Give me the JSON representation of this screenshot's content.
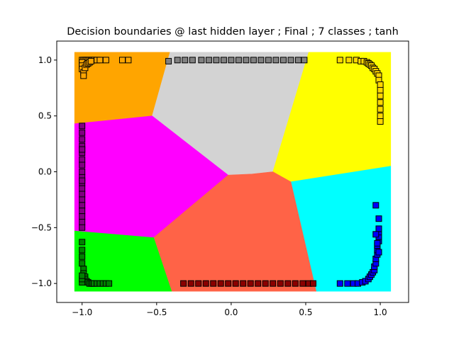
{
  "chart_data": {
    "type": "scatter",
    "title": "Decision boundaries @ last hidden layer ; Final ; 7 classes ; tanh",
    "xlabel": "",
    "ylabel": "",
    "xlim": [
      -1.17,
      1.19
    ],
    "ylim": [
      -1.17,
      1.17
    ],
    "x_ticks": [
      -1.0,
      -0.5,
      0.0,
      0.5,
      1.0
    ],
    "x_tick_labels": [
      "−1.0",
      "−0.5",
      "0.0",
      "0.5",
      "1.0"
    ],
    "y_ticks": [
      1.0,
      0.5,
      0.0,
      -0.5,
      -1.0
    ],
    "y_tick_labels": [
      "1.0",
      "0.5",
      "0.0",
      "−0.5",
      "−1.0"
    ],
    "grid": false,
    "legend": "none",
    "regions": [
      {
        "color": "#ffa500",
        "polygon": [
          [
            -1.05,
            1.07
          ],
          [
            -0.41,
            1.07
          ],
          [
            -0.53,
            0.5
          ],
          [
            -1.05,
            0.43
          ]
        ]
      },
      {
        "color": "#d3d3d3",
        "polygon": [
          [
            -0.41,
            1.07
          ],
          [
            0.52,
            1.07
          ],
          [
            0.28,
            0.0
          ],
          [
            0.14,
            -0.02
          ],
          [
            -0.02,
            -0.03
          ],
          [
            -0.53,
            0.5
          ]
        ]
      },
      {
        "color": "#ffff00",
        "polygon": [
          [
            0.52,
            1.07
          ],
          [
            1.07,
            1.07
          ],
          [
            1.07,
            0.05
          ],
          [
            0.4,
            -0.09
          ],
          [
            0.28,
            0.0
          ]
        ]
      },
      {
        "color": "#ff00ff",
        "polygon": [
          [
            -1.05,
            0.43
          ],
          [
            -0.53,
            0.5
          ],
          [
            -0.02,
            -0.03
          ],
          [
            -0.52,
            -0.59
          ],
          [
            -1.05,
            -0.53
          ]
        ]
      },
      {
        "color": "#00ffff",
        "polygon": [
          [
            0.4,
            -0.09
          ],
          [
            1.07,
            0.05
          ],
          [
            1.07,
            -1.07
          ],
          [
            0.57,
            -1.07
          ]
        ]
      },
      {
        "color": "#ff6347",
        "polygon": [
          [
            -0.02,
            -0.03
          ],
          [
            0.14,
            -0.02
          ],
          [
            0.28,
            0.0
          ],
          [
            0.4,
            -0.09
          ],
          [
            0.57,
            -1.07
          ],
          [
            -0.4,
            -1.07
          ],
          [
            -0.52,
            -0.59
          ]
        ]
      },
      {
        "color": "#00ff00",
        "polygon": [
          [
            -1.05,
            -0.53
          ],
          [
            -0.52,
            -0.59
          ],
          [
            -0.4,
            -1.07
          ],
          [
            -1.05,
            -1.07
          ]
        ]
      }
    ],
    "series": [
      {
        "color": "#ffa500",
        "x": [
          -1.0,
          -0.99,
          -0.98,
          -0.97,
          -0.96,
          -0.95,
          -0.94,
          -0.93,
          -0.92,
          -0.9,
          -0.88,
          -0.84,
          -0.73,
          -0.69,
          -1.0,
          -1.0,
          -1.0,
          -0.99,
          -0.99,
          -0.98,
          -0.97,
          -0.96,
          -0.95,
          -0.94
        ],
        "y": [
          1.0,
          1.0,
          1.0,
          1.0,
          1.0,
          1.0,
          1.0,
          1.0,
          1.0,
          1.0,
          1.0,
          1.0,
          1.0,
          1.0,
          0.98,
          0.95,
          0.92,
          0.89,
          0.86,
          0.93,
          0.96,
          0.97,
          0.98,
          0.99
        ]
      },
      {
        "color": "#808080",
        "x": [
          -0.42,
          -0.36,
          -0.31,
          -0.26,
          -0.2,
          -0.15,
          -0.1,
          -0.05,
          0.0,
          0.05,
          0.1,
          0.15,
          0.2,
          0.25,
          0.3,
          0.35,
          0.4,
          0.45,
          0.49
        ],
        "y": [
          0.99,
          1.0,
          1.0,
          1.0,
          1.0,
          1.0,
          1.0,
          1.0,
          1.0,
          1.0,
          1.0,
          1.0,
          1.0,
          1.0,
          1.0,
          1.0,
          1.0,
          1.0,
          1.0
        ]
      },
      {
        "color": "#ffd700",
        "x": [
          0.73,
          0.79,
          0.84,
          0.87,
          0.89,
          0.91,
          0.92,
          0.93,
          0.94,
          0.95,
          0.96,
          0.97,
          0.98,
          0.99,
          0.99,
          1.0,
          1.0,
          1.0,
          1.0,
          1.0,
          1.0,
          1.0
        ],
        "y": [
          1.0,
          1.0,
          1.0,
          0.99,
          0.99,
          0.98,
          0.97,
          0.96,
          0.95,
          0.93,
          0.92,
          0.9,
          0.88,
          0.86,
          0.82,
          0.78,
          0.73,
          0.68,
          0.62,
          0.56,
          0.5,
          0.45
        ]
      },
      {
        "color": "#800080",
        "x": [
          -1.0,
          -1.0,
          -1.0,
          -1.0,
          -1.0,
          -1.0,
          -1.0,
          -1.0,
          -1.0,
          -1.0,
          -1.0,
          -1.0,
          -1.0,
          -1.0,
          -1.0,
          -1.0,
          -1.0,
          -1.0,
          -1.0,
          -1.0
        ],
        "y": [
          0.41,
          0.35,
          0.29,
          0.23,
          0.17,
          0.11,
          0.06,
          0.0,
          -0.05,
          -0.1,
          -0.15,
          -0.2,
          -0.25,
          -0.3,
          -0.35,
          -0.4,
          -0.45,
          -0.5,
          -0.08,
          0.2
        ]
      },
      {
        "color": "#0000ff",
        "x": [
          0.73,
          0.78,
          0.82,
          0.85,
          0.88,
          0.9,
          0.92,
          0.93,
          0.94,
          0.95,
          0.96,
          0.96,
          0.97,
          0.97,
          0.98,
          0.98,
          0.98,
          0.99,
          0.99,
          0.99,
          0.99,
          0.97,
          0.98,
          0.99,
          0.99,
          0.97
        ],
        "y": [
          -1.0,
          -1.0,
          -1.0,
          -1.0,
          -0.99,
          -0.98,
          -0.96,
          -0.94,
          -0.92,
          -0.9,
          -0.88,
          -0.85,
          -0.82,
          -0.78,
          -0.74,
          -0.7,
          -0.66,
          -0.62,
          -0.58,
          -0.54,
          -0.51,
          -0.56,
          -0.64,
          -0.72,
          -0.42,
          -0.3
        ]
      },
      {
        "color": "#8b0000",
        "x": [
          -0.32,
          -0.27,
          -0.22,
          -0.17,
          -0.12,
          -0.07,
          -0.02,
          0.03,
          0.08,
          0.13,
          0.18,
          0.23,
          0.28,
          0.33,
          0.38,
          0.43,
          0.48,
          0.52,
          0.55
        ],
        "y": [
          -1.0,
          -1.0,
          -1.0,
          -1.0,
          -1.0,
          -1.0,
          -1.0,
          -1.0,
          -1.0,
          -1.0,
          -1.0,
          -1.0,
          -1.0,
          -1.0,
          -1.0,
          -1.0,
          -1.0,
          -1.0,
          -1.0
        ]
      },
      {
        "color": "#008000",
        "x": [
          -1.0,
          -1.0,
          -1.0,
          -1.0,
          -0.99,
          -0.99,
          -0.98,
          -0.98,
          -0.97,
          -0.96,
          -0.95,
          -0.94,
          -0.93,
          -0.92,
          -0.9,
          -0.88,
          -0.86,
          -0.84,
          -0.82,
          -1.0,
          -1.0,
          -1.0
        ],
        "y": [
          -0.63,
          -0.7,
          -0.76,
          -0.82,
          -0.87,
          -0.91,
          -0.94,
          -0.96,
          -0.98,
          -0.99,
          -1.0,
          -1.0,
          -1.0,
          -1.0,
          -1.0,
          -1.0,
          -1.0,
          -1.0,
          -1.0,
          -0.99,
          -0.96,
          -0.93
        ]
      }
    ]
  }
}
